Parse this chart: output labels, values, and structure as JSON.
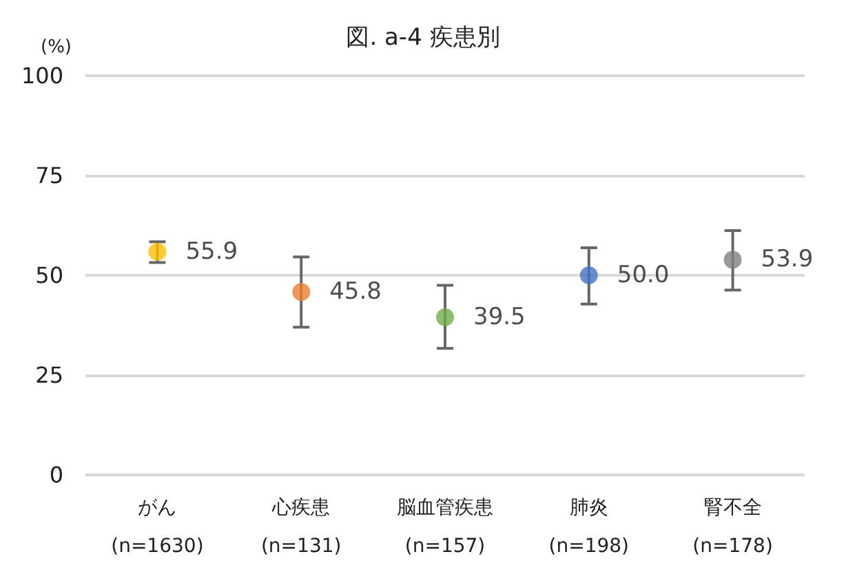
{
  "chart_data": {
    "type": "scatter",
    "title": "図. a-4 疾患別",
    "ylabel": "(%)",
    "categories": [
      "がん\n(n=1630)",
      "心疾患\n(n=131)",
      "脳血管疾患\n(n=157)",
      "肺炎\n(n=198)",
      "腎不全\n(n=178)"
    ],
    "values": [
      55.9,
      45.8,
      39.5,
      50.0,
      53.9
    ],
    "colors": [
      "#ffc000",
      "#ed7d31",
      "#70ad47",
      "#4472c4",
      "#7f7f7f"
    ],
    "errors": [
      [
        53.2,
        58.4
      ],
      [
        37.0,
        54.6
      ],
      [
        31.7,
        47.5
      ],
      [
        42.8,
        56.9
      ],
      [
        46.3,
        61.2
      ]
    ],
    "value_labels": [
      "55.9",
      "45.8",
      "39.5",
      "50.0",
      "53.9"
    ],
    "ylim": [
      0,
      100
    ],
    "yticks": [
      0,
      25,
      50,
      75,
      100
    ],
    "grid": "y",
    "marker": "circle"
  }
}
